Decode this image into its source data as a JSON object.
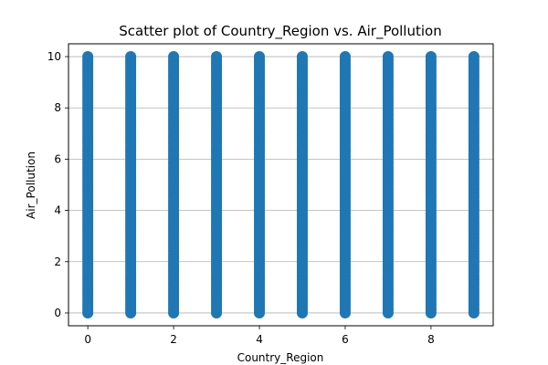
{
  "chart_data": {
    "type": "scatter",
    "title": "Scatter plot of Country_Region vs. Air_Pollution",
    "xlabel": "Country_Region",
    "ylabel": "Air_Pollution",
    "xlim": [
      -0.45,
      9.45
    ],
    "ylim": [
      -0.5,
      10.5
    ],
    "xticks": [
      0,
      2,
      4,
      6,
      8
    ],
    "yticks": [
      0,
      2,
      4,
      6,
      8,
      10
    ],
    "grid": true,
    "grid_axis": "y",
    "marker_color": "#1f77b4",
    "x_values": [
      0,
      1,
      2,
      3,
      4,
      5,
      6,
      7,
      8,
      9
    ],
    "y_min": 0,
    "y_max": 10,
    "y_step": 0.1
  }
}
